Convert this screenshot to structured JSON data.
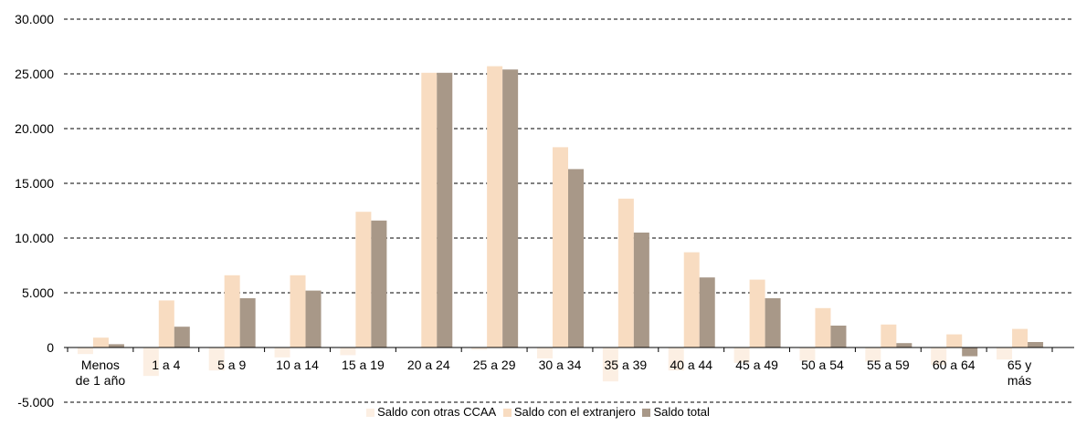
{
  "chart_data": {
    "type": "bar",
    "categories": [
      [
        "Menos",
        "de 1 año"
      ],
      [
        "1 a 4"
      ],
      [
        "5 a 9"
      ],
      [
        "10 a 14"
      ],
      [
        "15 a 19"
      ],
      [
        "20 a 24"
      ],
      [
        "25 a 29"
      ],
      [
        "30 a 34"
      ],
      [
        "35 a 39"
      ],
      [
        "40 a 44"
      ],
      [
        "45 a 49"
      ],
      [
        "50 a 54"
      ],
      [
        "55 a 59"
      ],
      [
        "60 a 64"
      ],
      [
        "65 y",
        "más"
      ]
    ],
    "series": [
      {
        "name": "Saldo con otras CCAA",
        "color": "#fcefe3",
        "values": [
          -600,
          -2600,
          -2100,
          -900,
          -700,
          0,
          -200,
          -1000,
          -3100,
          -2100,
          -1400,
          -1200,
          -1300,
          -1600,
          -1100
        ]
      },
      {
        "name": "Saldo con el extranjero",
        "color": "#f8dcc1",
        "values": [
          900,
          4300,
          6600,
          6600,
          12400,
          25100,
          25700,
          18300,
          13600,
          8700,
          6200,
          3600,
          2100,
          1200,
          1700
        ]
      },
      {
        "name": "Saldo total",
        "color": "#a89888",
        "values": [
          300,
          1900,
          4500,
          5200,
          11600,
          25100,
          25400,
          16300,
          10500,
          6400,
          4500,
          2000,
          400,
          -800,
          500
        ]
      }
    ],
    "yticks": [
      "30.000",
      "25.000",
      "20.000",
      "15.000",
      "10.000",
      "5.000",
      "0",
      "-5.000"
    ],
    "ylim": [
      -5000,
      30000
    ],
    "grid": true,
    "legend_position": "bottom"
  }
}
